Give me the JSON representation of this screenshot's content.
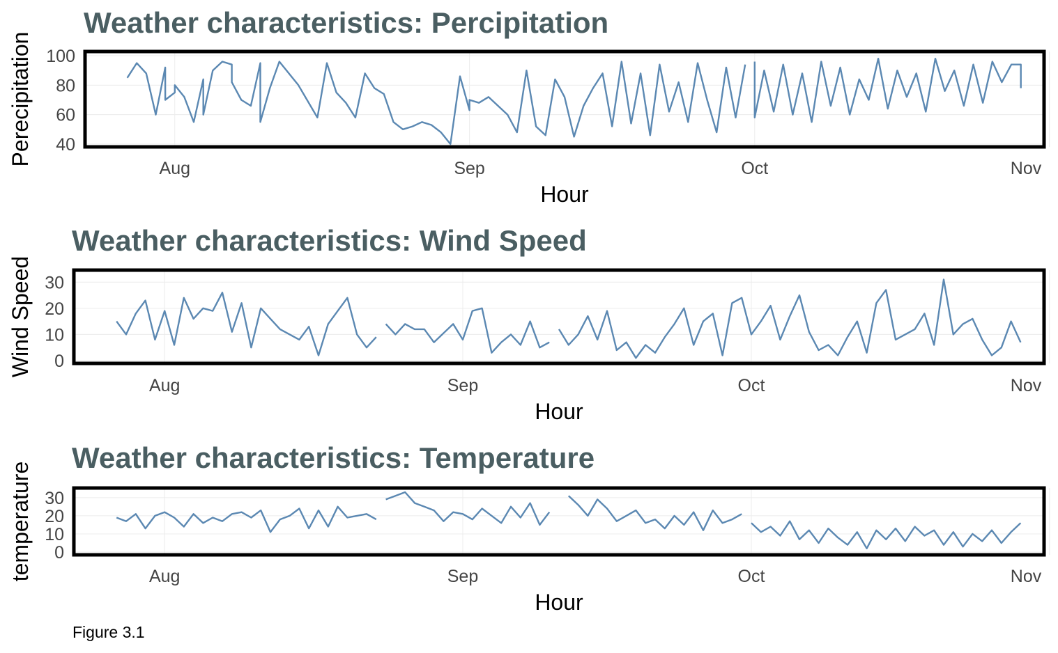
{
  "caption": "Figure 3.1",
  "chart_data": [
    {
      "type": "line",
      "title": "Weather characteristics: Percipitation",
      "xlabel": "Hour",
      "ylabel": "Perecipitation",
      "xlim": [
        "2023-07-23",
        "2023-10-31"
      ],
      "ylim": [
        40,
        100
      ],
      "y_ticks": [
        40,
        60,
        80,
        100
      ],
      "x_ticks": [
        {
          "label": "Aug",
          "date": "2023-08-01"
        },
        {
          "label": "Sep",
          "date": "2023-09-01"
        },
        {
          "label": "Oct",
          "date": "2023-10-01"
        },
        {
          "label": "Nov",
          "date": "2023-11-01"
        }
      ],
      "color": "#5b88b2",
      "grid": true,
      "segments": [
        {
          "x": [
            "2023-07-27",
            "2023-07-28",
            "2023-07-29",
            "2023-07-30",
            "2023-07-31",
            "2023-07-31",
            "2023-08-01",
            "2023-08-01",
            "2023-08-02",
            "2023-08-03",
            "2023-08-04",
            "2023-08-04",
            "2023-08-05",
            "2023-08-06",
            "2023-08-07",
            "2023-08-07",
            "2023-08-08",
            "2023-08-09",
            "2023-08-10",
            "2023-08-10",
            "2023-08-11",
            "2023-08-12",
            "2023-08-14",
            "2023-08-16",
            "2023-08-17",
            "2023-08-18",
            "2023-08-19",
            "2023-08-20",
            "2023-08-21",
            "2023-08-22",
            "2023-08-23",
            "2023-08-24",
            "2023-08-25",
            "2023-08-26",
            "2023-08-27",
            "2023-08-28",
            "2023-08-29",
            "2023-08-30",
            "2023-08-31",
            "2023-09-01",
            "2023-09-01",
            "2023-09-02",
            "2023-09-03",
            "2023-09-05",
            "2023-09-06",
            "2023-09-07",
            "2023-09-08",
            "2023-09-09",
            "2023-09-10",
            "2023-09-11",
            "2023-09-12",
            "2023-09-13",
            "2023-09-14",
            "2023-09-15",
            "2023-09-16",
            "2023-09-17",
            "2023-09-18",
            "2023-09-19",
            "2023-09-20",
            "2023-09-21",
            "2023-09-22",
            "2023-09-23",
            "2023-09-24",
            "2023-09-25",
            "2023-09-26",
            "2023-09-27",
            "2023-09-28",
            "2023-09-29",
            "2023-09-30"
          ],
          "y": [
            85,
            95,
            88,
            60,
            92,
            70,
            75,
            80,
            72,
            55,
            84,
            60,
            90,
            96,
            94,
            82,
            70,
            66,
            95,
            55,
            78,
            96,
            80,
            58,
            95,
            75,
            68,
            58,
            88,
            78,
            74,
            55,
            50,
            52,
            55,
            53,
            48,
            40,
            86,
            63,
            70,
            68,
            72,
            60,
            48,
            90,
            52,
            46,
            84,
            72,
            45,
            66,
            78,
            88,
            52,
            96,
            54,
            88,
            46,
            94,
            62,
            82,
            55,
            95,
            70,
            48,
            92,
            58,
            94
          ]
        },
        {
          "x": [
            "2023-10-01",
            "2023-10-01",
            "2023-10-02",
            "2023-10-03",
            "2023-10-04",
            "2023-10-05",
            "2023-10-06",
            "2023-10-07",
            "2023-10-08",
            "2023-10-09",
            "2023-10-10",
            "2023-10-11",
            "2023-10-12",
            "2023-10-13",
            "2023-10-14",
            "2023-10-15",
            "2023-10-16",
            "2023-10-17",
            "2023-10-18",
            "2023-10-19",
            "2023-10-20",
            "2023-10-21",
            "2023-10-22",
            "2023-10-23",
            "2023-10-24",
            "2023-10-25",
            "2023-10-26",
            "2023-10-27",
            "2023-10-28",
            "2023-10-29",
            "2023-10-29"
          ],
          "y": [
            96,
            58,
            90,
            62,
            94,
            60,
            88,
            55,
            96,
            66,
            92,
            60,
            84,
            70,
            98,
            64,
            90,
            72,
            88,
            62,
            98,
            76,
            90,
            66,
            94,
            68,
            96,
            82,
            94,
            94,
            78
          ]
        }
      ]
    },
    {
      "type": "line",
      "title": "Weather characteristics: Wind Speed",
      "xlabel": "Hour",
      "ylabel": "Wind Speed",
      "xlim": [
        "2023-07-23",
        "2023-10-31"
      ],
      "ylim": [
        0,
        33
      ],
      "y_ticks": [
        0,
        10,
        20,
        30
      ],
      "x_ticks": [
        {
          "label": "Aug",
          "date": "2023-08-01"
        },
        {
          "label": "Sep",
          "date": "2023-09-01"
        },
        {
          "label": "Oct",
          "date": "2023-10-01"
        },
        {
          "label": "Nov",
          "date": "2023-11-01"
        }
      ],
      "color": "#5b88b2",
      "grid": true,
      "segments": [
        {
          "x": [
            "2023-07-27",
            "2023-07-28",
            "2023-07-29",
            "2023-07-30",
            "2023-07-31",
            "2023-08-01",
            "2023-08-02",
            "2023-08-03",
            "2023-08-04",
            "2023-08-05",
            "2023-08-06",
            "2023-08-07",
            "2023-08-08",
            "2023-08-09",
            "2023-08-10",
            "2023-08-11",
            "2023-08-12",
            "2023-08-13",
            "2023-08-14",
            "2023-08-15",
            "2023-08-16",
            "2023-08-17",
            "2023-08-18",
            "2023-08-19",
            "2023-08-20",
            "2023-08-21",
            "2023-08-22",
            "2023-08-23"
          ],
          "y": [
            15,
            10,
            18,
            23,
            8,
            19,
            6,
            24,
            16,
            20,
            19,
            26,
            11,
            22,
            5,
            20,
            16,
            12,
            10,
            8,
            13,
            2,
            14,
            19,
            24,
            10,
            5,
            9
          ]
        },
        {
          "x": [
            "2023-08-24",
            "2023-08-25",
            "2023-08-26",
            "2023-08-27",
            "2023-08-28",
            "2023-08-29",
            "2023-08-31",
            "2023-09-01",
            "2023-09-02",
            "2023-09-03",
            "2023-09-04",
            "2023-09-05",
            "2023-09-06",
            "2023-09-07",
            "2023-09-08",
            "2023-09-09",
            "2023-09-10"
          ],
          "y": [
            14,
            10,
            14,
            12,
            12,
            7,
            14,
            8,
            19,
            20,
            3,
            7,
            10,
            6,
            15,
            5,
            7
          ]
        },
        {
          "x": [
            "2023-09-11",
            "2023-09-12",
            "2023-09-13",
            "2023-09-14",
            "2023-09-15",
            "2023-09-16",
            "2023-09-17",
            "2023-09-18",
            "2023-09-19",
            "2023-09-20",
            "2023-09-21",
            "2023-09-22",
            "2023-09-23",
            "2023-09-24",
            "2023-09-25",
            "2023-09-26",
            "2023-09-27",
            "2023-09-28",
            "2023-09-29",
            "2023-09-30",
            "2023-10-01",
            "2023-10-02",
            "2023-10-03",
            "2023-10-04",
            "2023-10-05",
            "2023-10-06",
            "2023-10-07",
            "2023-10-08",
            "2023-10-09",
            "2023-10-10",
            "2023-10-11",
            "2023-10-12",
            "2023-10-13",
            "2023-10-14",
            "2023-10-15",
            "2023-10-16",
            "2023-10-17",
            "2023-10-18",
            "2023-10-19",
            "2023-10-20",
            "2023-10-21",
            "2023-10-22",
            "2023-10-23",
            "2023-10-24",
            "2023-10-25",
            "2023-10-26",
            "2023-10-27",
            "2023-10-28",
            "2023-10-29"
          ],
          "y": [
            12,
            6,
            10,
            17,
            8,
            19,
            4,
            7,
            1,
            6,
            3,
            9,
            14,
            20,
            6,
            15,
            18,
            2,
            22,
            24,
            10,
            15,
            21,
            8,
            17,
            25,
            11,
            4,
            6,
            2,
            9,
            15,
            3,
            22,
            27,
            8,
            10,
            12,
            18,
            6,
            31,
            10,
            14,
            16,
            8,
            2,
            5,
            15,
            7
          ]
        }
      ]
    },
    {
      "type": "line",
      "title": "Weather characteristics: Temperature",
      "xlabel": "Hour",
      "ylabel": "temperature",
      "xlim": [
        "2023-07-23",
        "2023-10-31"
      ],
      "ylim": [
        0,
        33
      ],
      "y_ticks": [
        0,
        10,
        20,
        30
      ],
      "x_ticks": [
        {
          "label": "Aug",
          "date": "2023-08-01"
        },
        {
          "label": "Sep",
          "date": "2023-09-01"
        },
        {
          "label": "Oct",
          "date": "2023-10-01"
        },
        {
          "label": "Nov",
          "date": "2023-11-01"
        }
      ],
      "color": "#5b88b2",
      "grid": true,
      "segments": [
        {
          "x": [
            "2023-07-27",
            "2023-07-28",
            "2023-07-29",
            "2023-07-30",
            "2023-07-31",
            "2023-08-01",
            "2023-08-02",
            "2023-08-03",
            "2023-08-04",
            "2023-08-05",
            "2023-08-06",
            "2023-08-07",
            "2023-08-08",
            "2023-08-09",
            "2023-08-10",
            "2023-08-11",
            "2023-08-12",
            "2023-08-13",
            "2023-08-14",
            "2023-08-15",
            "2023-08-16",
            "2023-08-17",
            "2023-08-18",
            "2023-08-19",
            "2023-08-20",
            "2023-08-21",
            "2023-08-22",
            "2023-08-23"
          ],
          "y": [
            19,
            17,
            21,
            13,
            20,
            22,
            19,
            14,
            21,
            16,
            19,
            17,
            21,
            22,
            19,
            23,
            11,
            18,
            20,
            24,
            13,
            23,
            14,
            25,
            19,
            20,
            21,
            18
          ]
        },
        {
          "x": [
            "2023-08-24",
            "2023-08-25",
            "2023-08-26",
            "2023-08-27",
            "2023-08-28",
            "2023-08-29",
            "2023-08-30",
            "2023-08-31",
            "2023-09-01",
            "2023-09-02",
            "2023-09-03",
            "2023-09-04",
            "2023-09-05",
            "2023-09-06",
            "2023-09-07",
            "2023-09-08",
            "2023-09-09",
            "2023-09-10"
          ],
          "y": [
            29,
            31,
            33,
            27,
            25,
            23,
            17,
            22,
            21,
            18,
            24,
            20,
            16,
            25,
            19,
            27,
            15,
            22
          ]
        },
        {
          "x": [
            "2023-09-12",
            "2023-09-13",
            "2023-09-14",
            "2023-09-15",
            "2023-09-16",
            "2023-09-17",
            "2023-09-18",
            "2023-09-19",
            "2023-09-20",
            "2023-09-21",
            "2023-09-22",
            "2023-09-23",
            "2023-09-24",
            "2023-09-25",
            "2023-09-26",
            "2023-09-27",
            "2023-09-28",
            "2023-09-29",
            "2023-09-30"
          ],
          "y": [
            31,
            26,
            20,
            29,
            24,
            17,
            20,
            23,
            16,
            18,
            13,
            20,
            15,
            22,
            12,
            23,
            16,
            18,
            21
          ]
        },
        {
          "x": [
            "2023-10-01",
            "2023-10-02",
            "2023-10-03",
            "2023-10-04",
            "2023-10-05",
            "2023-10-06",
            "2023-10-07",
            "2023-10-08",
            "2023-10-09",
            "2023-10-10",
            "2023-10-11",
            "2023-10-12",
            "2023-10-13",
            "2023-10-14",
            "2023-10-15",
            "2023-10-16",
            "2023-10-17",
            "2023-10-18",
            "2023-10-19",
            "2023-10-20",
            "2023-10-21",
            "2023-10-22",
            "2023-10-23",
            "2023-10-24",
            "2023-10-25",
            "2023-10-26",
            "2023-10-27",
            "2023-10-28",
            "2023-10-29"
          ],
          "y": [
            16,
            11,
            14,
            9,
            17,
            7,
            12,
            5,
            13,
            8,
            4,
            11,
            2,
            12,
            7,
            13,
            6,
            14,
            9,
            12,
            4,
            11,
            3,
            10,
            6,
            12,
            5,
            11,
            16
          ]
        }
      ]
    }
  ]
}
